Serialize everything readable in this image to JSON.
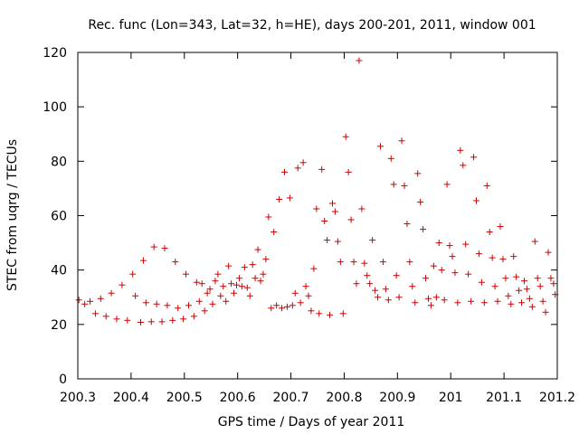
{
  "chart_data": {
    "type": "scatter",
    "title": "Rec. func (Lon=343, Lat=32, h=HE), days 200-201, 2011, window 001",
    "xlabel": "GPS time / Days of year 2011",
    "ylabel": "STEC from uqrg / TECUs",
    "xlim": [
      200.3,
      201.2
    ],
    "ylim": [
      0,
      120
    ],
    "xticks": [
      200.3,
      200.4,
      200.5,
      200.6,
      200.7,
      200.8,
      200.9,
      201,
      201.1,
      201.2
    ],
    "xtick_labels": [
      "200.3",
      "200.4",
      "200.5",
      "200.6",
      "200.7",
      "200.8",
      "200.9",
      "201",
      "201.1",
      "201.2"
    ],
    "yticks": [
      0,
      20,
      40,
      60,
      80,
      100,
      120
    ],
    "ytick_labels": [
      "0",
      "20",
      "40",
      "60",
      "80",
      "100",
      "120"
    ],
    "marker": "+",
    "color": "#cc0000",
    "series": [
      {
        "name": "STEC",
        "points": [
          [
            200.302,
            29
          ],
          [
            200.313,
            27.5
          ],
          [
            200.323,
            28.5
          ],
          [
            200.333,
            24
          ],
          [
            200.343,
            29.5
          ],
          [
            200.353,
            23
          ],
          [
            200.363,
            31.5
          ],
          [
            200.373,
            22
          ],
          [
            200.383,
            34.5
          ],
          [
            200.393,
            21.5
          ],
          [
            200.403,
            38.5
          ],
          [
            200.408,
            30.5
          ],
          [
            200.418,
            20.8
          ],
          [
            200.423,
            43.5
          ],
          [
            200.428,
            28
          ],
          [
            200.438,
            21
          ],
          [
            200.443,
            48.5
          ],
          [
            200.448,
            27.5
          ],
          [
            200.458,
            21
          ],
          [
            200.463,
            48
          ],
          [
            200.468,
            27
          ],
          [
            200.478,
            21.5
          ],
          [
            200.483,
            43
          ],
          [
            200.488,
            26
          ],
          [
            200.498,
            22
          ],
          [
            200.503,
            38.5
          ],
          [
            200.508,
            27
          ],
          [
            200.518,
            23
          ],
          [
            200.523,
            35.5
          ],
          [
            200.528,
            28.5
          ],
          [
            200.533,
            35
          ],
          [
            200.538,
            25
          ],
          [
            200.543,
            31.5
          ],
          [
            200.548,
            33
          ],
          [
            200.553,
            27.5
          ],
          [
            200.558,
            36
          ],
          [
            200.563,
            38.5
          ],
          [
            200.568,
            30.5
          ],
          [
            200.573,
            34
          ],
          [
            200.578,
            28.5
          ],
          [
            200.583,
            41.5
          ],
          [
            200.588,
            35
          ],
          [
            200.593,
            31.5
          ],
          [
            200.598,
            34.5
          ],
          [
            200.603,
            37
          ],
          [
            200.608,
            34
          ],
          [
            200.613,
            41
          ],
          [
            200.618,
            33.5
          ],
          [
            200.623,
            30.5
          ],
          [
            200.628,
            42
          ],
          [
            200.633,
            37
          ],
          [
            200.638,
            47.5
          ],
          [
            200.643,
            36
          ],
          [
            200.648,
            38.5
          ],
          [
            200.653,
            44
          ],
          [
            200.658,
            59.5
          ],
          [
            200.663,
            26
          ],
          [
            200.668,
            54
          ],
          [
            200.673,
            27
          ],
          [
            200.678,
            66
          ],
          [
            200.683,
            26
          ],
          [
            200.688,
            76
          ],
          [
            200.693,
            26.5
          ],
          [
            200.698,
            66.5
          ],
          [
            200.703,
            27
          ],
          [
            200.708,
            31.5
          ],
          [
            200.713,
            77.5
          ],
          [
            200.718,
            28
          ],
          [
            200.723,
            79.5
          ],
          [
            200.728,
            34
          ],
          [
            200.733,
            30.5
          ],
          [
            200.738,
            25
          ],
          [
            200.743,
            40.5
          ],
          [
            200.748,
            62.5
          ],
          [
            200.753,
            24
          ],
          [
            200.758,
            77
          ],
          [
            200.763,
            58
          ],
          [
            200.768,
            51
          ],
          [
            200.773,
            23.5
          ],
          [
            200.778,
            64.5
          ],
          [
            200.783,
            61.5
          ],
          [
            200.788,
            50.5
          ],
          [
            200.793,
            43
          ],
          [
            200.798,
            24
          ],
          [
            200.803,
            89
          ],
          [
            200.808,
            76
          ],
          [
            200.813,
            58.5
          ],
          [
            200.818,
            43
          ],
          [
            200.823,
            35
          ],
          [
            200.828,
            117
          ],
          [
            200.833,
            62.5
          ],
          [
            200.838,
            42.5
          ],
          [
            200.843,
            38
          ],
          [
            200.848,
            35
          ],
          [
            200.853,
            51
          ],
          [
            200.858,
            32.5
          ],
          [
            200.863,
            30
          ],
          [
            200.868,
            85.5
          ],
          [
            200.873,
            43
          ],
          [
            200.878,
            33
          ],
          [
            200.883,
            29
          ],
          [
            200.888,
            81
          ],
          [
            200.893,
            71.5
          ],
          [
            200.898,
            38
          ],
          [
            200.903,
            30
          ],
          [
            200.908,
            87.5
          ],
          [
            200.913,
            71
          ],
          [
            200.918,
            57
          ],
          [
            200.923,
            43
          ],
          [
            200.928,
            34
          ],
          [
            200.933,
            28
          ],
          [
            200.938,
            75.5
          ],
          [
            200.943,
            65
          ],
          [
            200.948,
            55
          ],
          [
            200.953,
            37
          ],
          [
            200.958,
            29.5
          ],
          [
            200.963,
            27
          ],
          [
            200.968,
            41.5
          ],
          [
            200.973,
            30
          ],
          [
            200.978,
            50
          ],
          [
            200.983,
            40
          ],
          [
            200.988,
            29
          ],
          [
            200.993,
            71.5
          ],
          [
            200.998,
            49
          ],
          [
            201.003,
            45
          ],
          [
            201.008,
            39
          ],
          [
            201.013,
            28
          ],
          [
            201.018,
            84
          ],
          [
            201.023,
            78.5
          ],
          [
            201.028,
            49.5
          ],
          [
            201.033,
            38.5
          ],
          [
            201.038,
            28.5
          ],
          [
            201.043,
            81.5
          ],
          [
            201.048,
            65.5
          ],
          [
            201.053,
            46
          ],
          [
            201.058,
            35.5
          ],
          [
            201.063,
            28
          ],
          [
            201.068,
            71
          ],
          [
            201.073,
            54
          ],
          [
            201.078,
            44.5
          ],
          [
            201.083,
            34
          ],
          [
            201.088,
            28.5
          ],
          [
            201.093,
            56
          ],
          [
            201.098,
            44
          ],
          [
            201.103,
            37
          ],
          [
            201.108,
            30.5
          ],
          [
            201.113,
            27.5
          ],
          [
            201.118,
            45
          ],
          [
            201.123,
            37.5
          ],
          [
            201.128,
            32.5
          ],
          [
            201.133,
            28
          ],
          [
            201.138,
            36
          ],
          [
            201.143,
            33
          ],
          [
            201.148,
            29.5
          ],
          [
            201.153,
            26.5
          ],
          [
            201.158,
            50.5
          ],
          [
            201.163,
            37
          ],
          [
            201.168,
            34
          ],
          [
            201.173,
            28.5
          ],
          [
            201.178,
            24.5
          ],
          [
            201.183,
            46.5
          ],
          [
            201.188,
            37
          ],
          [
            201.193,
            35
          ],
          [
            201.196,
            31
          ]
        ]
      }
    ]
  }
}
